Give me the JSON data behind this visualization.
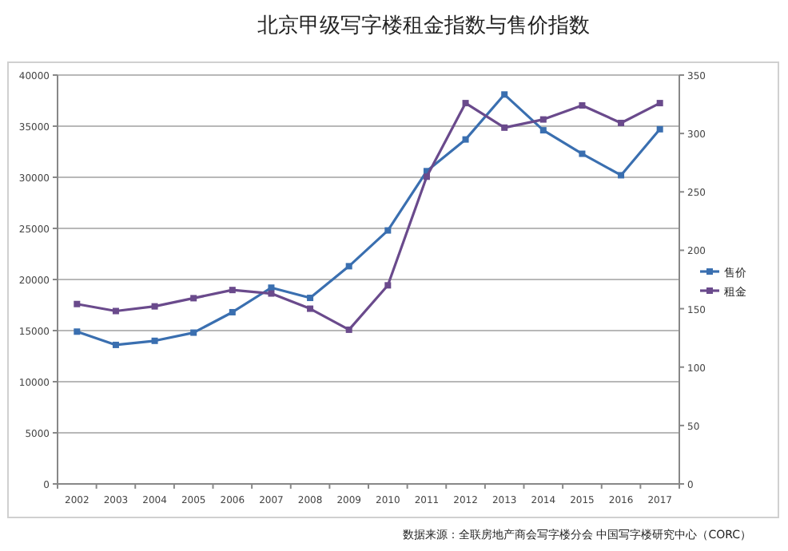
{
  "chart_data": {
    "type": "line",
    "title": "北京甲级写字楼租金指数与售价指数",
    "categories": [
      "2002",
      "2003",
      "2004",
      "2005",
      "2006",
      "2007",
      "2008",
      "2009",
      "2010",
      "2011",
      "2012",
      "2013",
      "2014",
      "2015",
      "2016",
      "2017"
    ],
    "series": [
      {
        "name": "售价",
        "color": "#3a6fb0",
        "values": [
          14900,
          13600,
          14000,
          14800,
          16800,
          19200,
          18200,
          21300,
          24800,
          30600,
          33700,
          38100,
          34600,
          32300,
          30200,
          34700
        ]
      },
      {
        "name": "租金",
        "color": "#6a4a8c",
        "axis": "y2",
        "values": [
          154,
          148,
          152,
          159,
          166,
          163,
          150,
          132,
          170,
          263,
          326,
          305,
          312,
          324,
          309,
          326
        ]
      }
    ],
    "ylim": [
      0,
      40000
    ],
    "yticks": [
      0,
      5000,
      10000,
      15000,
      20000,
      25000,
      30000,
      35000,
      40000
    ],
    "y2lim": [
      0,
      350
    ],
    "y2ticks": [
      0,
      50,
      100,
      150,
      200,
      250,
      300,
      350
    ],
    "grid": "y",
    "legend": "right",
    "marker": "square",
    "line_style": "solid",
    "annotations": [
      "数据来源：全联房地产商会写字楼分会 中国写字楼研究中心（CORC）"
    ]
  }
}
